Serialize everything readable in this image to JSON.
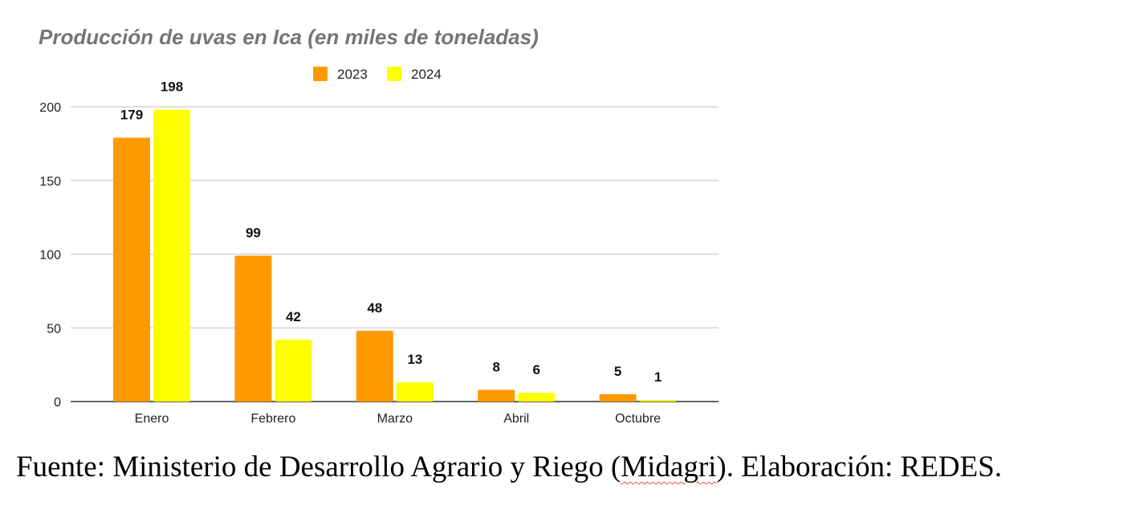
{
  "chart_data": {
    "type": "bar",
    "title": "Producción de uvas en Ica (en miles de toneladas)",
    "xlabel": "",
    "ylabel": "",
    "categories": [
      "Enero",
      "Febrero",
      "Marzo",
      "Abril",
      "Octubre"
    ],
    "series": [
      {
        "name": "2023",
        "color": "#ff9900",
        "values": [
          179,
          99,
          48,
          8,
          5
        ]
      },
      {
        "name": "2024",
        "color": "#ffff00",
        "values": [
          198,
          42,
          13,
          6,
          1
        ]
      }
    ],
    "ylim": [
      0,
      200
    ],
    "yticks": [
      0,
      50,
      100,
      150,
      200
    ],
    "grid": true,
    "legend_position": "top-center",
    "data_labels": true
  },
  "source": {
    "before": "Fuente: Ministerio de Desarrollo Agrario y Riego (",
    "underlined": "Midagri",
    "after": "). Elaboración: REDES."
  }
}
